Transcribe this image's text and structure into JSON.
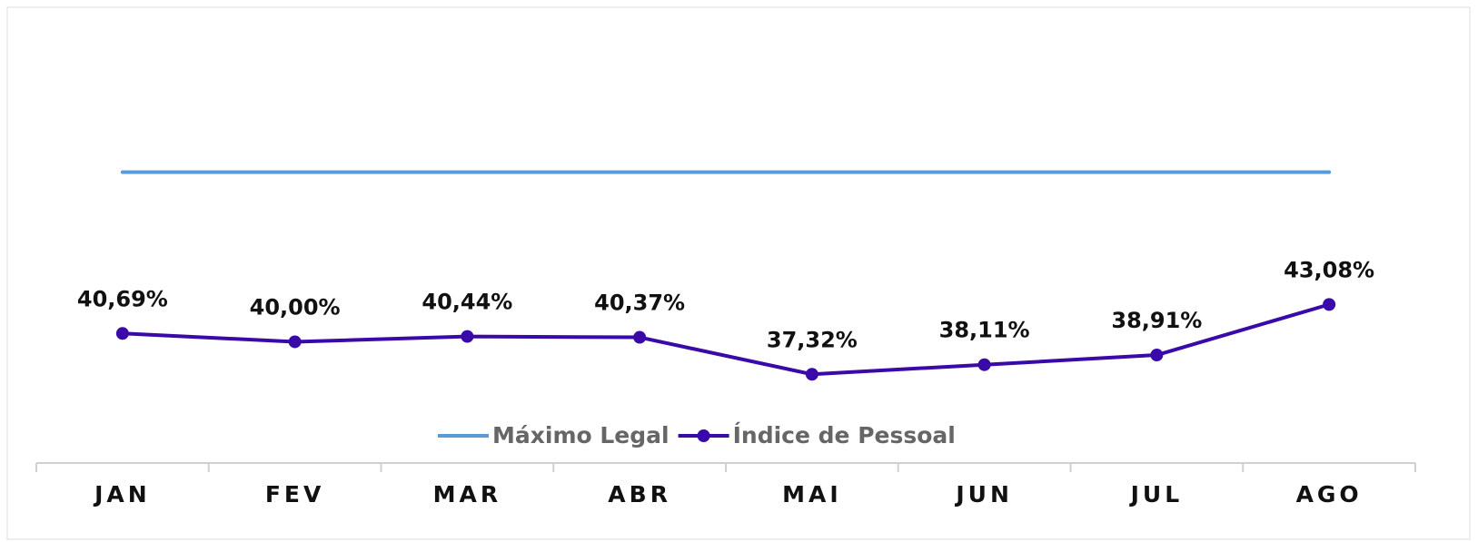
{
  "chart_data": {
    "type": "line",
    "categories": [
      "JAN",
      "FEV",
      "MAR",
      "ABR",
      "MAI",
      "JUN",
      "JUL",
      "AGO"
    ],
    "series": [
      {
        "name": "Máximo Legal",
        "color": "#5b9bd5",
        "values": [
          54,
          54,
          54,
          54,
          54,
          54,
          54,
          54
        ]
      },
      {
        "name": "Índice de Pessoal",
        "color": "#3a0aa8",
        "values": [
          40.69,
          40.0,
          40.44,
          40.37,
          37.32,
          38.11,
          38.91,
          43.08
        ],
        "value_labels": [
          "40,69%",
          "40,00%",
          "40,44%",
          "40,37%",
          "37,32%",
          "38,11%",
          "38,91%",
          "43,08%"
        ],
        "markers": true
      }
    ],
    "ylim": [
      30,
      67
    ],
    "legend": "bottom"
  }
}
